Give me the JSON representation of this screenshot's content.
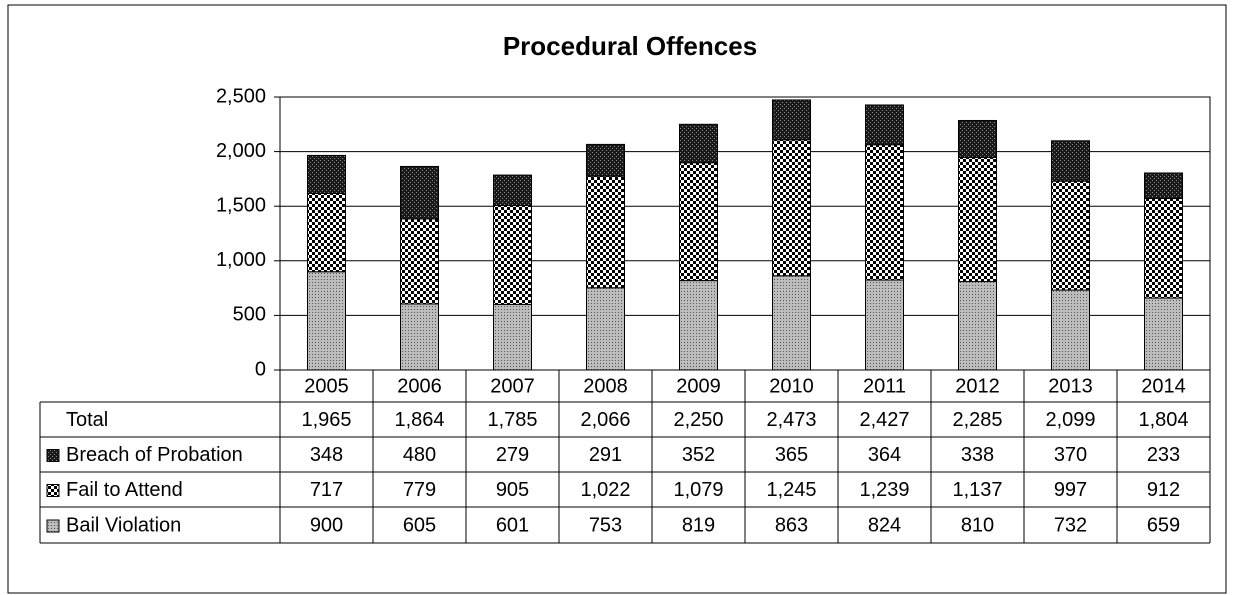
{
  "chart_data": {
    "type": "stacked_bar",
    "title": "Procedural Offences",
    "categories": [
      "2005",
      "2006",
      "2007",
      "2008",
      "2009",
      "2010",
      "2011",
      "2012",
      "2013",
      "2014"
    ],
    "series": [
      {
        "name": "Bail Violation",
        "color": "#bdbdbd",
        "pattern": "dots",
        "values": [
          900,
          605,
          601,
          753,
          819,
          863,
          824,
          810,
          732,
          659
        ],
        "value_labels": [
          "900",
          "605",
          "601",
          "753",
          "819",
          "863",
          "824",
          "810",
          "732",
          "659"
        ]
      },
      {
        "name": "Fail to Attend",
        "color": "#ffffff",
        "pattern": "checker",
        "values": [
          717,
          779,
          905,
          1022,
          1079,
          1245,
          1239,
          1137,
          997,
          912
        ],
        "value_labels": [
          "717",
          "779",
          "905",
          "1,022",
          "1,079",
          "1,245",
          "1,239",
          "1,137",
          "997",
          "912"
        ]
      },
      {
        "name": "Breach of Probation",
        "color": "#1a1a1a",
        "pattern": "dense",
        "values": [
          348,
          480,
          279,
          291,
          352,
          365,
          364,
          338,
          370,
          233
        ],
        "value_labels": [
          "348",
          "480",
          "279",
          "291",
          "352",
          "365",
          "364",
          "338",
          "370",
          "233"
        ]
      }
    ],
    "total": {
      "name": "Total",
      "values": [
        1965,
        1864,
        1785,
        2066,
        2250,
        2473,
        2427,
        2285,
        2099,
        1804
      ],
      "value_labels": [
        "1,965",
        "1,864",
        "1,785",
        "2,066",
        "2,250",
        "2,473",
        "2,427",
        "2,285",
        "2,099",
        "1,804"
      ]
    },
    "ylim": [
      0,
      2500
    ],
    "yticks": [
      0,
      500,
      {
        "value": 1000,
        "label": "1,000"
      },
      {
        "value": 1500,
        "label": "1,500"
      },
      {
        "value": 2000,
        "label": "2,000"
      },
      {
        "value": 2500,
        "label": "2,500"
      }
    ],
    "grid": true
  }
}
